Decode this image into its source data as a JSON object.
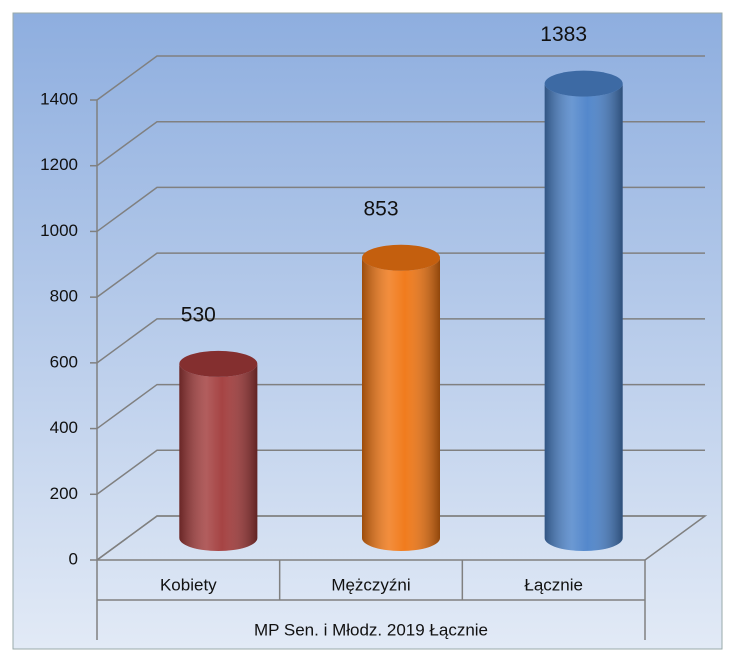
{
  "chart_data": {
    "type": "bar3d",
    "categories": [
      "Kobiety",
      "Mężczyźni",
      "Łącznie"
    ],
    "values": [
      530,
      853,
      1383
    ],
    "colors": [
      "#a13a3a",
      "#f07512",
      "#4b82c9"
    ],
    "xlabel": "MP Sen. i Młodz. 2019 Łącznie",
    "ylim": [
      0,
      1400
    ],
    "yticks": [
      0,
      200,
      400,
      600,
      800,
      1000,
      1200,
      1400
    ],
    "grid": true
  }
}
